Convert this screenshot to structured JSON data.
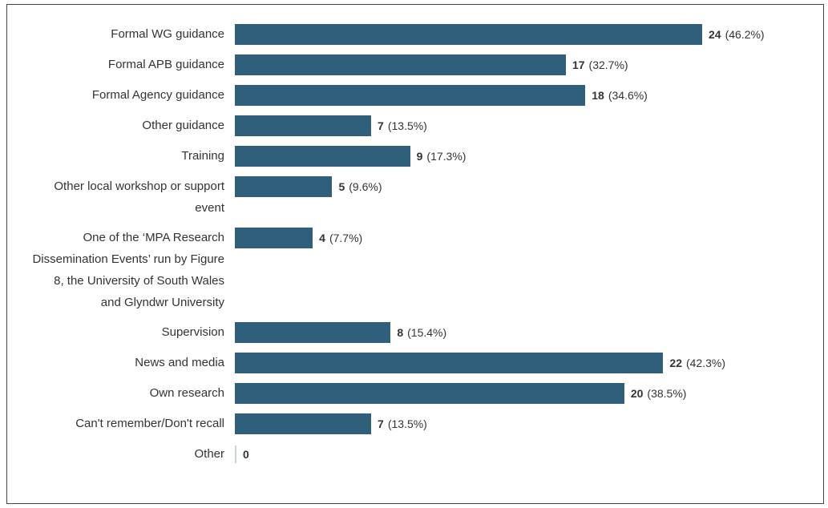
{
  "chart_data": {
    "type": "bar",
    "orientation": "horizontal",
    "color": "#2f5f7a",
    "categories": [
      "Formal WG guidance",
      "Formal APB guidance",
      "Formal Agency guidance",
      "Other guidance",
      "Training",
      "Other local workshop or support event",
      "One of the ‘MPA Research Dissemination Events’ run by Figure 8, the University of South Wales and Glyndwr University",
      "Supervision",
      "News and media",
      "Own research",
      "Can't remember/Don't recall",
      "Other"
    ],
    "values": [
      24,
      17,
      18,
      7,
      9,
      5,
      4,
      8,
      22,
      20,
      7,
      0
    ],
    "shares": [
      46.2,
      32.7,
      34.6,
      13.5,
      17.3,
      9.6,
      7.7,
      15.4,
      42.3,
      38.5,
      13.5,
      null
    ],
    "share_labels": [
      "(46.2%)",
      "(32.7%)",
      "(34.6%)",
      "(13.5%)",
      "(17.3%)",
      "(9.6%)",
      "(7.7%)",
      "(15.4%)",
      "(42.3%)",
      "(38.5%)",
      "(13.5%)",
      null
    ]
  }
}
